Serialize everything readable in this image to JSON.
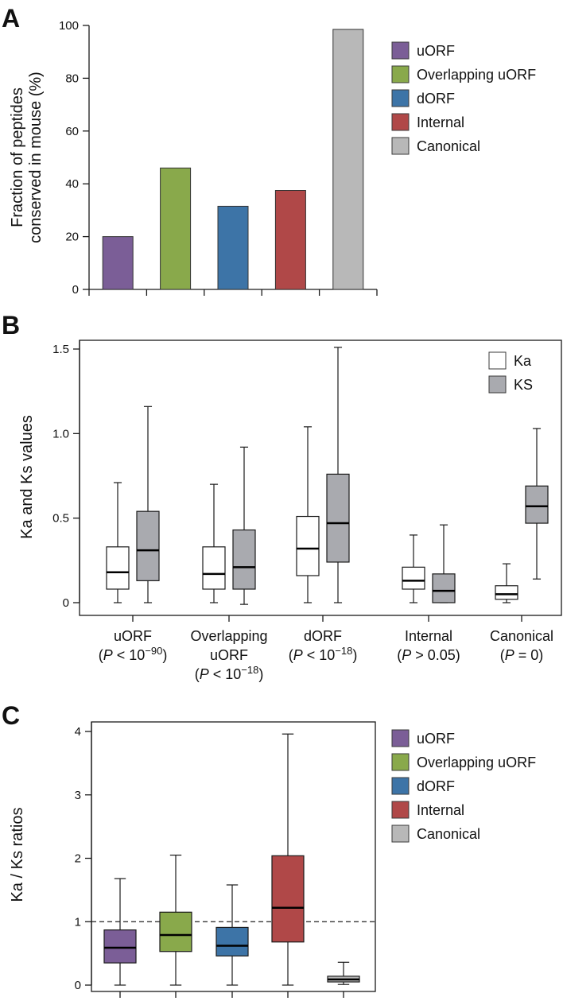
{
  "colors": {
    "uorf": "#7b5e97",
    "overlapping": "#89a94b",
    "dorf": "#3d74a7",
    "internal": "#b04848",
    "canonical": "#b8b8b8",
    "ka_fill": "#ffffff",
    "ks_fill": "#a9aaaf",
    "line": "#1a1a1a"
  },
  "chart_data": [
    {
      "panel": "A",
      "type": "bar",
      "ylabel": [
        "Fraction of peptides",
        "conserved in mouse (%)"
      ],
      "ylim": [
        0,
        100
      ],
      "yticks": [
        "0",
        "20",
        "40",
        "60",
        "80",
        "100"
      ],
      "categories": [
        "uORF",
        "Overlapping uORF",
        "dORF",
        "Internal",
        "Canonical"
      ],
      "values": [
        20,
        46,
        31.5,
        37.5,
        98.5
      ],
      "legend": [
        "uORF",
        "Overlapping uORF",
        "dORF",
        "Internal",
        "Canonical"
      ],
      "legend_position": "right"
    },
    {
      "panel": "B",
      "type": "box",
      "ylabel": "Ka and Ks values",
      "ylim": [
        0,
        1.5
      ],
      "yticks": [
        "0",
        "0.5",
        "1.0",
        "1.5"
      ],
      "legend": [
        "Ka",
        "KS"
      ],
      "legend_position": "top-right",
      "groups": [
        {
          "label_lines": [
            [
              "uORF"
            ],
            [
              "(",
              "P",
              " < 10",
              "−90",
              ")"
            ]
          ],
          "ka": {
            "min": 0.0,
            "q1": 0.08,
            "median": 0.18,
            "q3": 0.33,
            "max": 0.71
          },
          "ks": {
            "min": 0.0,
            "q1": 0.13,
            "median": 0.31,
            "q3": 0.54,
            "max": 1.16
          }
        },
        {
          "label_lines": [
            [
              "Overlapping"
            ],
            [
              "uORF"
            ],
            [
              "(",
              "P",
              " < 10",
              "−18",
              ")"
            ]
          ],
          "ka": {
            "min": 0.0,
            "q1": 0.08,
            "median": 0.17,
            "q3": 0.33,
            "max": 0.7
          },
          "ks": {
            "min": -0.01,
            "q1": 0.08,
            "median": 0.21,
            "q3": 0.43,
            "max": 0.92
          }
        },
        {
          "label_lines": [
            [
              "dORF"
            ],
            [
              "(",
              "P",
              " < 10",
              "−18",
              ")"
            ]
          ],
          "ka": {
            "min": 0.0,
            "q1": 0.16,
            "median": 0.32,
            "q3": 0.51,
            "max": 1.04
          },
          "ks": {
            "min": 0.0,
            "q1": 0.24,
            "median": 0.47,
            "q3": 0.76,
            "max": 1.51
          }
        },
        {
          "label_lines": [
            [
              "Internal"
            ],
            [
              "(",
              "P",
              " > 0.05)"
            ]
          ],
          "ka": {
            "min": 0.0,
            "q1": 0.08,
            "median": 0.13,
            "q3": 0.21,
            "max": 0.4
          },
          "ks": {
            "min": 0.0,
            "q1": 0.0,
            "median": 0.07,
            "q3": 0.17,
            "max": 0.46
          }
        },
        {
          "label_lines": [
            [
              "Canonical"
            ],
            [
              "(",
              "P",
              " = 0)"
            ]
          ],
          "ka": {
            "min": 0.0,
            "q1": 0.02,
            "median": 0.05,
            "q3": 0.1,
            "max": 0.23
          },
          "ks": {
            "min": 0.14,
            "q1": 0.47,
            "median": 0.57,
            "q3": 0.69,
            "max": 1.03
          }
        }
      ]
    },
    {
      "panel": "C",
      "type": "box",
      "ylabel": "Ka / Ks ratios",
      "ylim": [
        0,
        4
      ],
      "yticks": [
        "0",
        "1",
        "2",
        "3",
        "4"
      ],
      "reference_line": 1,
      "legend": [
        "uORF",
        "Overlapping uORF",
        "dORF",
        "Internal",
        "Canonical"
      ],
      "legend_position": "right",
      "series": [
        {
          "name": "uORF",
          "min": 0.0,
          "q1": 0.35,
          "median": 0.59,
          "q3": 0.87,
          "max": 1.68
        },
        {
          "name": "Overlapping uORF",
          "min": 0.0,
          "q1": 0.53,
          "median": 0.79,
          "q3": 1.15,
          "max": 2.05
        },
        {
          "name": "dORF",
          "min": 0.0,
          "q1": 0.46,
          "median": 0.62,
          "q3": 0.91,
          "max": 1.58
        },
        {
          "name": "Internal",
          "min": 0.0,
          "q1": 0.68,
          "median": 1.22,
          "q3": 2.04,
          "max": 3.96
        },
        {
          "name": "Canonical",
          "min": 0.01,
          "q1": 0.05,
          "median": 0.09,
          "q3": 0.14,
          "max": 0.36
        }
      ]
    }
  ]
}
